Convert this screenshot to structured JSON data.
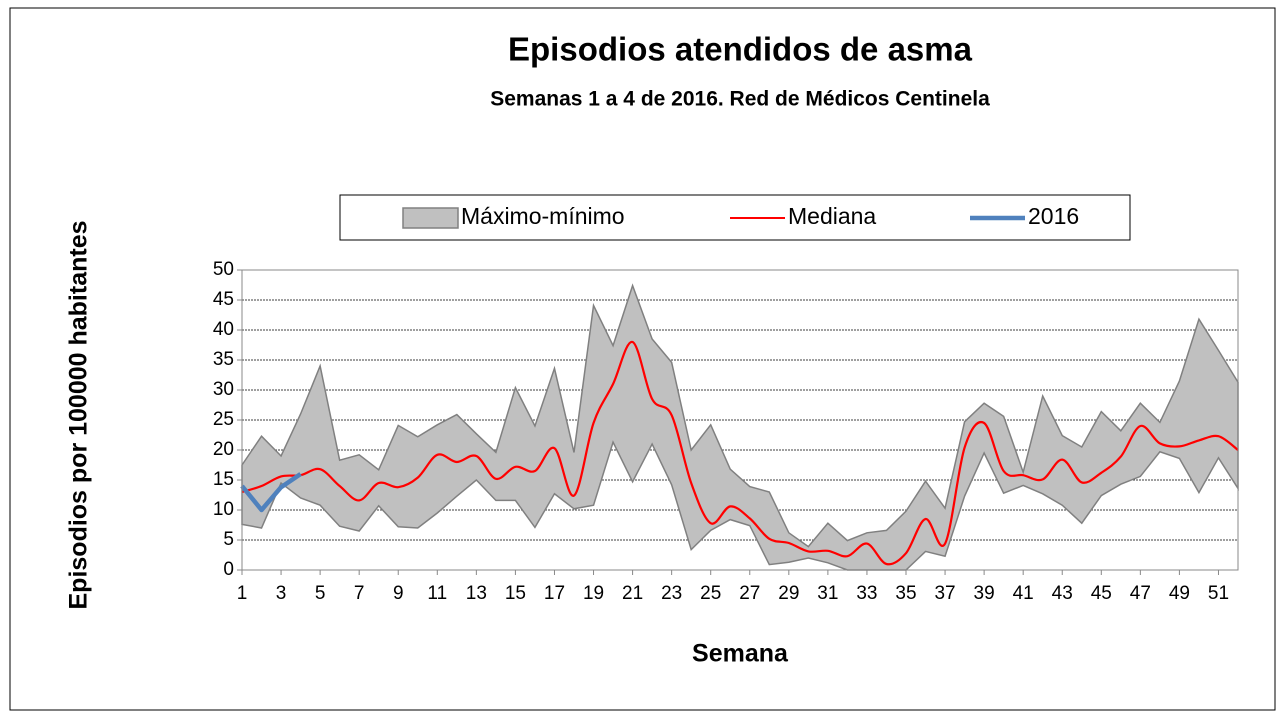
{
  "chart_data": {
    "type": "line",
    "title": "Episodios atendidos de asma",
    "subtitle": "Semanas 1 a 4 de 2016. Red de Médicos Centinela",
    "x_label": "Semana",
    "y_label": "Episodios por 100000 habitantes",
    "x": [
      1,
      2,
      3,
      4,
      5,
      6,
      7,
      8,
      9,
      10,
      11,
      12,
      13,
      14,
      15,
      16,
      17,
      18,
      19,
      20,
      21,
      22,
      23,
      24,
      25,
      26,
      27,
      28,
      29,
      30,
      31,
      32,
      33,
      34,
      35,
      36,
      37,
      38,
      39,
      40,
      41,
      42,
      43,
      44,
      45,
      46,
      47,
      48,
      49,
      50,
      51,
      52
    ],
    "xlim": [
      1,
      52
    ],
    "xticks": [
      1,
      3,
      5,
      7,
      9,
      11,
      13,
      15,
      17,
      19,
      21,
      23,
      25,
      27,
      29,
      31,
      33,
      35,
      37,
      39,
      41,
      43,
      45,
      47,
      49,
      51
    ],
    "ylim": [
      0,
      50
    ],
    "yticks": [
      0,
      5,
      10,
      15,
      20,
      25,
      30,
      35,
      40,
      45,
      50
    ],
    "grid": true,
    "legend": "top",
    "series": [
      {
        "name": "Máximo-mínimo",
        "type": "area",
        "color": "#c0c0c0",
        "edge_color": "#808080",
        "upper": [
          17.5,
          22.3,
          19,
          26,
          34,
          18.3,
          19.2,
          16.7,
          24.1,
          22.2,
          24.2,
          25.9,
          22.7,
          19.6,
          30.4,
          24,
          33.6,
          19.6,
          44.1,
          37.4,
          47.4,
          38.5,
          34.6,
          20,
          24.2,
          16.8,
          13.9,
          13,
          6.2,
          3.9,
          7.8,
          4.9,
          6.2,
          6.6,
          9.8,
          14.8,
          10.3,
          24.7,
          27.8,
          25.6,
          16.3,
          29,
          22.4,
          20.5,
          26.4,
          23.2,
          27.8,
          24.6,
          31.5,
          41.8,
          36.6,
          31.3
        ],
        "lower": [
          7.6,
          7,
          14.5,
          12,
          10.8,
          7.3,
          6.5,
          10.7,
          7.2,
          7,
          9.5,
          12.3,
          15,
          11.6,
          11.6,
          7.1,
          12.7,
          10.2,
          10.8,
          21.3,
          14.7,
          21,
          14.2,
          3.4,
          6.6,
          8.4,
          7.4,
          0.9,
          1.3,
          2,
          1.2,
          0,
          0,
          0,
          0,
          3.1,
          2.3,
          12.3,
          19.5,
          12.8,
          14.1,
          12.7,
          10.8,
          7.8,
          12.4,
          14.3,
          15.6,
          19.7,
          18.6,
          12.9,
          18.7,
          13.6
        ]
      },
      {
        "name": "Mediana",
        "type": "line",
        "color": "#ff0000",
        "smooth": true,
        "values": [
          13,
          14,
          15.6,
          15.8,
          16.8,
          14,
          11.6,
          14.5,
          13.8,
          15.4,
          19.2,
          18,
          19,
          15.2,
          17.2,
          16.5,
          20.3,
          12.4,
          24.5,
          31,
          38,
          28.5,
          25.8,
          14.5,
          7.8,
          10.6,
          8.6,
          5.2,
          4.5,
          3.1,
          3.2,
          2.3,
          4.4,
          1,
          2.8,
          8.5,
          4.4,
          20.4,
          24.5,
          16.5,
          15.8,
          15.1,
          18.4,
          14.6,
          16.2,
          18.9,
          24,
          21.1,
          20.6,
          21.6,
          22.3,
          20
        ]
      },
      {
        "name": "2016",
        "type": "line",
        "color": "#4f81bd",
        "smooth": false,
        "values": [
          14,
          10,
          13.8,
          16,
          null,
          null,
          null,
          null,
          null,
          null,
          null,
          null,
          null,
          null,
          null,
          null,
          null,
          null,
          null,
          null,
          null,
          null,
          null,
          null,
          null,
          null,
          null,
          null,
          null,
          null,
          null,
          null,
          null,
          null,
          null,
          null,
          null,
          null,
          null,
          null,
          null,
          null,
          null,
          null,
          null,
          null,
          null,
          null,
          null,
          null,
          null,
          null
        ]
      }
    ]
  }
}
